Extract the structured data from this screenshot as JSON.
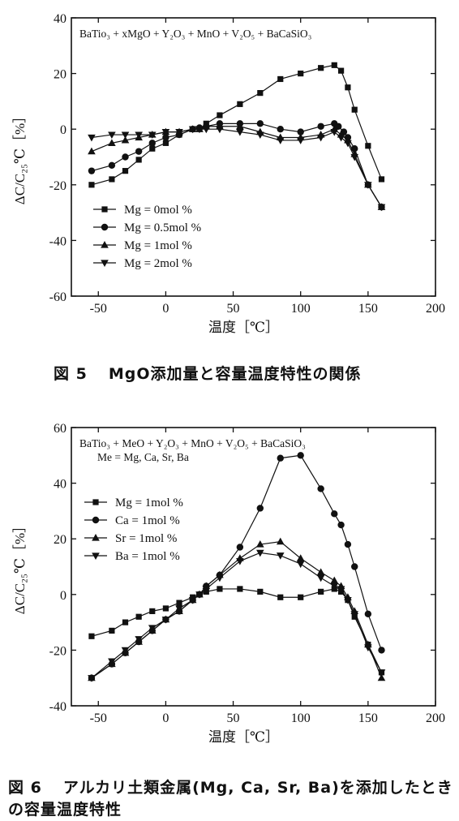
{
  "charts": [
    {
      "caption_number": "図 5",
      "caption_text": "MgO添加量と容量温度特性の関係",
      "chart_data": {
        "type": "line",
        "title": "BaTio₃ + xMgO + Y₂O₃ + MnO + V₂O₅ + BaCaSiO₃",
        "subtitle": "",
        "xlabel": "温度［℃］",
        "ylabel": "ΔC/C₂₅℃［%］",
        "xlim": [
          -70,
          200
        ],
        "ylim": [
          -60,
          40
        ],
        "xticks": [
          -50,
          0,
          50,
          100,
          150,
          200
        ],
        "yticks": [
          -60,
          -40,
          -20,
          0,
          20,
          40
        ],
        "grid": false,
        "legend": "bottom-left",
        "series": [
          {
            "name": "Mg = 0mol %",
            "marker": "square",
            "x": [
              -55,
              -40,
              -30,
              -20,
              -10,
              0,
              10,
              20,
              25,
              30,
              40,
              55,
              70,
              85,
              100,
              115,
              125,
              130,
              135,
              140,
              150,
              160
            ],
            "y": [
              -20,
              -18,
              -15,
              -11,
              -7,
              -5,
              -2,
              0,
              0,
              2,
              5,
              9,
              13,
              18,
              20,
              22,
              23,
              21,
              15,
              7,
              -6,
              -18
            ]
          },
          {
            "name": "Mg = 0.5mol %",
            "marker": "circle",
            "x": [
              -55,
              -40,
              -30,
              -20,
              -10,
              0,
              10,
              20,
              25,
              30,
              40,
              55,
              70,
              85,
              100,
              115,
              125,
              128,
              132,
              135,
              140,
              150,
              160
            ],
            "y": [
              -15,
              -13,
              -10,
              -8,
              -5,
              -3,
              -2,
              0,
              0.5,
              1,
              2,
              2,
              2,
              0,
              -1,
              1,
              2,
              1,
              -1,
              -3,
              -7,
              -20,
              -28
            ]
          },
          {
            "name": "Mg = 1mol %",
            "marker": "triangle-up",
            "x": [
              -55,
              -40,
              -30,
              -20,
              -10,
              0,
              10,
              20,
              25,
              30,
              40,
              55,
              70,
              85,
              100,
              115,
              125,
              130,
              135,
              140,
              150,
              160
            ],
            "y": [
              -8,
              -5,
              -4,
              -3,
              -2,
              -1,
              -1,
              0,
              0,
              1,
              1,
              1,
              -1,
              -3,
              -3,
              -2,
              0,
              -2,
              -4,
              -9,
              -20,
              -28
            ]
          },
          {
            "name": "Mg = 2mol %",
            "marker": "triangle-down",
            "x": [
              -55,
              -40,
              -30,
              -20,
              -10,
              0,
              10,
              20,
              25,
              30,
              40,
              55,
              70,
              85,
              100,
              115,
              125,
              130,
              135,
              140,
              150,
              160
            ],
            "y": [
              -3,
              -2,
              -2,
              -2,
              -2,
              -1,
              -1,
              0,
              0,
              0,
              0,
              -1,
              -2,
              -4,
              -4,
              -3,
              -1,
              -3,
              -5,
              -10,
              -20,
              -28
            ]
          }
        ]
      }
    },
    {
      "caption_number": "図 6",
      "caption_text": "アルカリ土類金属(Mg, Ca, Sr, Ba)を添加したときの容量温度特性",
      "chart_data": {
        "type": "line",
        "title": "BaTio₃ + MeO + Y₂O₃ + MnO + V₂O₅ + BaCaSiO₃",
        "subtitle": "Me = Mg, Ca, Sr, Ba",
        "xlabel": "温度［℃］",
        "ylabel": "ΔC/C₂₅℃［%］",
        "xlim": [
          -70,
          200
        ],
        "ylim": [
          -40,
          60
        ],
        "xticks": [
          -50,
          0,
          50,
          100,
          150,
          200
        ],
        "yticks": [
          -40,
          -20,
          0,
          20,
          40,
          60
        ],
        "grid": false,
        "legend": "top-left",
        "series": [
          {
            "name": "Mg = 1mol %",
            "marker": "square",
            "x": [
              -55,
              -40,
              -30,
              -20,
              -10,
              0,
              10,
              20,
              25,
              30,
              40,
              55,
              70,
              85,
              100,
              115,
              125,
              130,
              135,
              140,
              150,
              160
            ],
            "y": [
              -15,
              -13,
              -10,
              -8,
              -6,
              -5,
              -3,
              -1,
              0,
              1,
              2,
              2,
              1,
              -1,
              -1,
              1,
              2,
              1,
              -2,
              -8,
              -18,
              -28
            ]
          },
          {
            "name": "Ca = 1mol %",
            "marker": "circle",
            "x": [
              -55,
              -40,
              -30,
              -20,
              -10,
              0,
              10,
              20,
              25,
              30,
              40,
              55,
              70,
              85,
              100,
              115,
              125,
              130,
              135,
              140,
              150,
              160
            ],
            "y": [
              -30,
              -25,
              -21,
              -17,
              -13,
              -9,
              -6,
              -2,
              0,
              3,
              7,
              17,
              31,
              49,
              50,
              38,
              29,
              25,
              18,
              10,
              -7,
              -20
            ]
          },
          {
            "name": "Sr = 1mol %",
            "marker": "triangle-up",
            "x": [
              -55,
              -40,
              -30,
              -20,
              -10,
              0,
              10,
              20,
              25,
              30,
              40,
              55,
              70,
              85,
              100,
              115,
              125,
              130,
              135,
              140,
              150,
              160
            ],
            "y": [
              -30,
              -25,
              -21,
              -17,
              -13,
              -9,
              -6,
              -2,
              0,
              3,
              7,
              13,
              18,
              19,
              13,
              8,
              5,
              3,
              -1,
              -6,
              -18,
              -30
            ]
          },
          {
            "name": "Ba = 1mol %",
            "marker": "triangle-down",
            "x": [
              -55,
              -40,
              -30,
              -20,
              -10,
              0,
              10,
              20,
              25,
              30,
              40,
              55,
              70,
              85,
              100,
              115,
              125,
              130,
              135,
              140,
              150,
              160
            ],
            "y": [
              -30,
              -24,
              -20,
              -16,
              -12,
              -9,
              -5,
              -2,
              0,
              2,
              6,
              12,
              15,
              14,
              11,
              6,
              3,
              2,
              -2,
              -7,
              -19,
              -28
            ]
          }
        ]
      }
    }
  ]
}
